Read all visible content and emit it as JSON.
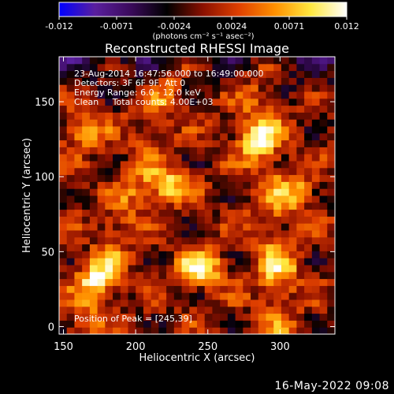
{
  "chart_data": {
    "type": "heatmap",
    "title": "Reconstructed RHESSI Image",
    "xlabel": "Heliocentric X (arcsec)",
    "ylabel": "Heliocentric Y (arcsec)",
    "xlim": [
      147,
      338
    ],
    "ylim": [
      -5,
      180
    ],
    "xticks": [
      150,
      200,
      250,
      300
    ],
    "yticks": [
      0,
      50,
      100,
      150
    ],
    "colorbar": {
      "range": [
        -0.012,
        0.012
      ],
      "ticks": [
        "-0.012",
        "-0.0071",
        "-0.0024",
        "0.0024",
        "0.0071",
        "0.012"
      ],
      "unit_label": "(photons cm⁻² s⁻¹ asec⁻²)",
      "colors": [
        "#0000ff",
        "#5a1f9e",
        "#3a0a5a",
        "#000000",
        "#8a1000",
        "#e04000",
        "#ff9000",
        "#ffe840",
        "#ffffff"
      ]
    },
    "annotations": [
      "23-Aug-2014 16:47:56.000 to 16:49:00.000",
      "Detectors: 3F 6F 9F, Att 0",
      "Energy Range: 6.0 - 12.0 keV",
      "Clean     Total counts: 4.00E+03"
    ],
    "peak_label": "Position of Peak = [245,39]",
    "peak": {
      "x": 245,
      "y": 39,
      "value": 0.012
    },
    "sources": [
      {
        "x": 245,
        "y": 39,
        "value": 0.012
      },
      {
        "x": 222,
        "y": 95,
        "value": 0.01
      },
      {
        "x": 285,
        "y": 125,
        "value": 0.009
      },
      {
        "x": 172,
        "y": 33,
        "value": 0.008
      },
      {
        "x": 165,
        "y": 130,
        "value": 0.007
      },
      {
        "x": 310,
        "y": 90,
        "value": 0.007
      },
      {
        "x": 300,
        "y": 40,
        "value": 0.006
      }
    ]
  },
  "footer": {
    "date": "16-May-2022 09:08"
  }
}
